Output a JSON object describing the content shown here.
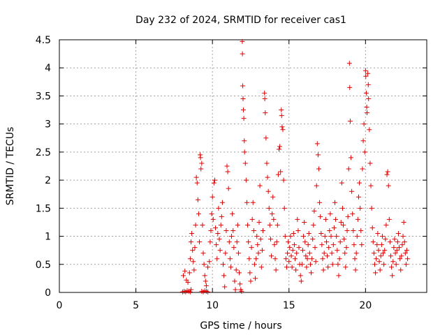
{
  "chart_data": {
    "type": "scatter",
    "title": "Day 232 of 2024, SRMTID for receiver cas1",
    "xlabel": "GPS time / hours",
    "ylabel": "SRMTID / TECUs",
    "xlim": [
      0,
      24
    ],
    "ylim": [
      0,
      4.5
    ],
    "xticks": [
      0,
      5,
      10,
      15,
      20
    ],
    "xtick_labels": [
      "0",
      "5",
      "10",
      "15",
      "20"
    ],
    "yticks": [
      0,
      0.5,
      1,
      1.5,
      2,
      2.5,
      3,
      3.5,
      4,
      4.5
    ],
    "ytick_labels": [
      "0",
      "0.5",
      "1",
      "1.5",
      "2",
      "2.5",
      "3",
      "3.5",
      "4",
      "4.5"
    ],
    "grid": true,
    "marker": "+",
    "series": [
      {
        "name": "cas1",
        "color": "#e00000",
        "points": [
          [
            8.05,
            0.01
          ],
          [
            8.15,
            0.02
          ],
          [
            8.25,
            0.01
          ],
          [
            8.35,
            0.03
          ],
          [
            8.45,
            0.02
          ],
          [
            8.55,
            0.01
          ],
          [
            8.6,
            0.05
          ],
          [
            8.1,
            0.3
          ],
          [
            8.2,
            0.38
          ],
          [
            8.3,
            0.22
          ],
          [
            8.4,
            0.18
          ],
          [
            8.5,
            0.35
          ],
          [
            8.55,
            0.6
          ],
          [
            8.6,
            0.9
          ],
          [
            8.65,
            1.05
          ],
          [
            8.7,
            0.75
          ],
          [
            8.75,
            0.55
          ],
          [
            8.8,
            0.4
          ],
          [
            8.85,
            0.8
          ],
          [
            8.9,
            1.2
          ],
          [
            8.95,
            2.05
          ],
          [
            9.0,
            1.95
          ],
          [
            9.05,
            1.65
          ],
          [
            9.1,
            1.4
          ],
          [
            9.15,
            0.9
          ],
          [
            9.2,
            2.45
          ],
          [
            9.22,
            2.4
          ],
          [
            9.25,
            2.2
          ],
          [
            9.3,
            2.3
          ],
          [
            9.35,
            1.2
          ],
          [
            9.4,
            0.7
          ],
          [
            9.3,
            0.02
          ],
          [
            9.4,
            0.01
          ],
          [
            9.5,
            0.03
          ],
          [
            9.6,
            0.02
          ],
          [
            9.7,
            0.01
          ],
          [
            9.45,
            0.5
          ],
          [
            9.5,
            0.3
          ],
          [
            9.55,
            0.2
          ],
          [
            9.6,
            0.12
          ],
          [
            9.7,
            0.45
          ],
          [
            9.8,
            0.55
          ],
          [
            9.85,
            0.9
          ],
          [
            9.9,
            1.1
          ],
          [
            9.95,
            1.4
          ],
          [
            10.0,
            1.7
          ],
          [
            10.05,
            1.3
          ],
          [
            10.1,
            1.95
          ],
          [
            10.15,
            2.0
          ],
          [
            10.2,
            1.15
          ],
          [
            10.25,
            0.85
          ],
          [
            10.3,
            0.6
          ],
          [
            10.35,
            1.05
          ],
          [
            10.4,
            1.5
          ],
          [
            10.45,
            0.95
          ],
          [
            10.5,
            0.75
          ],
          [
            10.55,
            1.2
          ],
          [
            10.6,
            1.35
          ],
          [
            10.65,
            1.6
          ],
          [
            10.7,
            0.5
          ],
          [
            10.75,
            0.3
          ],
          [
            10.8,
            0.1
          ],
          [
            10.85,
            0.7
          ],
          [
            10.9,
            1.1
          ],
          [
            10.95,
            2.25
          ],
          [
            11.0,
            2.15
          ],
          [
            11.05,
            1.85
          ],
          [
            11.1,
            0.9
          ],
          [
            11.15,
            0.6
          ],
          [
            11.2,
            0.45
          ],
          [
            11.25,
            1.0
          ],
          [
            11.3,
            1.4
          ],
          [
            11.35,
            1.1
          ],
          [
            11.4,
            0.8
          ],
          [
            11.45,
            0.2
          ],
          [
            11.5,
            0.05
          ],
          [
            11.55,
            0.4
          ],
          [
            11.6,
            0.9
          ],
          [
            11.65,
            1.2
          ],
          [
            11.7,
            0.7
          ],
          [
            11.75,
            0.35
          ],
          [
            11.8,
            0.15
          ],
          [
            11.85,
            0.05
          ],
          [
            11.9,
            0.02
          ],
          [
            11.95,
            4.47
          ],
          [
            11.96,
            4.25
          ],
          [
            11.98,
            3.68
          ],
          [
            12.0,
            3.45
          ],
          [
            12.02,
            3.25
          ],
          [
            12.05,
            3.1
          ],
          [
            12.08,
            2.7
          ],
          [
            12.1,
            2.5
          ],
          [
            12.15,
            2.3
          ],
          [
            12.2,
            2.0
          ],
          [
            12.25,
            1.6
          ],
          [
            12.3,
            1.2
          ],
          [
            12.35,
            0.9
          ],
          [
            12.4,
            0.6
          ],
          [
            12.45,
            0.35
          ],
          [
            12.5,
            0.2
          ],
          [
            12.55,
            0.8
          ],
          [
            12.6,
            1.3
          ],
          [
            12.65,
            1.6
          ],
          [
            12.7,
            1.1
          ],
          [
            12.75,
            0.5
          ],
          [
            12.8,
            0.25
          ],
          [
            12.85,
            0.6
          ],
          [
            12.9,
            1.0
          ],
          [
            12.95,
            0.85
          ],
          [
            13.0,
            0.7
          ],
          [
            13.05,
            1.25
          ],
          [
            13.1,
            1.9
          ],
          [
            13.15,
            0.95
          ],
          [
            13.2,
            0.45
          ],
          [
            13.25,
            0.75
          ],
          [
            13.3,
            1.1
          ],
          [
            13.4,
            3.55
          ],
          [
            13.42,
            3.45
          ],
          [
            13.45,
            3.2
          ],
          [
            13.5,
            2.75
          ],
          [
            13.55,
            2.3
          ],
          [
            13.6,
            2.05
          ],
          [
            13.65,
            1.8
          ],
          [
            13.7,
            1.5
          ],
          [
            13.75,
            1.2
          ],
          [
            13.8,
            0.95
          ],
          [
            13.85,
            0.65
          ],
          [
            13.9,
            1.4
          ],
          [
            13.95,
            1.7
          ],
          [
            14.0,
            1.3
          ],
          [
            14.05,
            0.85
          ],
          [
            14.1,
            0.6
          ],
          [
            14.15,
            0.4
          ],
          [
            14.2,
            0.9
          ],
          [
            14.25,
            1.2
          ],
          [
            14.3,
            2.1
          ],
          [
            14.35,
            2.55
          ],
          [
            14.4,
            2.6
          ],
          [
            14.45,
            2.15
          ],
          [
            14.5,
            3.25
          ],
          [
            14.52,
            3.15
          ],
          [
            14.55,
            2.95
          ],
          [
            14.6,
            2.9
          ],
          [
            14.65,
            2.0
          ],
          [
            14.7,
            1.5
          ],
          [
            14.75,
            1.0
          ],
          [
            14.8,
            0.6
          ],
          [
            14.85,
            0.45
          ],
          [
            14.9,
            0.7
          ],
          [
            14.95,
            0.9
          ],
          [
            15.0,
            0.55
          ],
          [
            15.05,
            0.8
          ],
          [
            15.1,
            1.0
          ],
          [
            15.15,
            0.65
          ],
          [
            15.2,
            0.45
          ],
          [
            15.25,
            0.75
          ],
          [
            15.3,
            1.05
          ],
          [
            15.35,
            0.85
          ],
          [
            15.4,
            0.6
          ],
          [
            15.45,
            0.4
          ],
          [
            15.5,
            0.7
          ],
          [
            15.55,
            1.3
          ],
          [
            15.6,
            1.1
          ],
          [
            15.65,
            0.8
          ],
          [
            15.7,
            0.5
          ],
          [
            15.75,
            0.3
          ],
          [
            15.8,
            0.2
          ],
          [
            15.85,
            0.5
          ],
          [
            15.9,
            0.75
          ],
          [
            15.95,
            1.0
          ],
          [
            16.0,
            1.25
          ],
          [
            16.05,
            0.9
          ],
          [
            16.1,
            0.65
          ],
          [
            16.15,
            0.45
          ],
          [
            16.2,
            0.6
          ],
          [
            16.25,
            0.85
          ],
          [
            16.3,
            1.05
          ],
          [
            16.35,
            0.7
          ],
          [
            16.4,
            0.5
          ],
          [
            16.45,
            0.35
          ],
          [
            16.5,
            0.6
          ],
          [
            16.55,
            0.95
          ],
          [
            16.6,
            1.2
          ],
          [
            16.65,
            1.45
          ],
          [
            16.7,
            0.8
          ],
          [
            16.75,
            0.55
          ],
          [
            16.8,
            1.9
          ],
          [
            16.85,
            2.65
          ],
          [
            16.9,
            2.45
          ],
          [
            16.95,
            2.2
          ],
          [
            17.0,
            1.6
          ],
          [
            17.05,
            1.35
          ],
          [
            17.1,
            1.05
          ],
          [
            17.15,
            0.85
          ],
          [
            17.2,
            0.6
          ],
          [
            17.25,
            0.4
          ],
          [
            17.3,
            0.7
          ],
          [
            17.35,
            1.0
          ],
          [
            17.4,
            1.3
          ],
          [
            17.45,
            0.9
          ],
          [
            17.5,
            0.65
          ],
          [
            17.55,
            0.45
          ],
          [
            17.6,
            0.8
          ],
          [
            17.65,
            1.1
          ],
          [
            17.7,
            1.4
          ],
          [
            17.75,
            1.0
          ],
          [
            17.8,
            0.7
          ],
          [
            17.85,
            0.5
          ],
          [
            17.9,
            0.85
          ],
          [
            17.95,
            1.15
          ],
          [
            18.0,
            1.6
          ],
          [
            18.05,
            1.3
          ],
          [
            18.1,
            1.0
          ],
          [
            18.15,
            0.75
          ],
          [
            18.2,
            0.5
          ],
          [
            18.25,
            0.3
          ],
          [
            18.3,
            0.6
          ],
          [
            18.35,
            0.9
          ],
          [
            18.4,
            1.25
          ],
          [
            18.45,
            1.95
          ],
          [
            18.5,
            1.5
          ],
          [
            18.55,
            1.2
          ],
          [
            18.6,
            0.95
          ],
          [
            18.65,
            0.7
          ],
          [
            18.7,
            0.45
          ],
          [
            18.75,
            0.8
          ],
          [
            18.8,
            1.1
          ],
          [
            18.85,
            1.35
          ],
          [
            18.9,
            2.2
          ],
          [
            18.95,
            4.08
          ],
          [
            18.97,
            3.65
          ],
          [
            19.0,
            3.05
          ],
          [
            19.05,
            2.4
          ],
          [
            19.1,
            1.8
          ],
          [
            19.15,
            1.4
          ],
          [
            19.2,
            1.1
          ],
          [
            19.25,
            0.85
          ],
          [
            19.3,
            0.6
          ],
          [
            19.35,
            0.4
          ],
          [
            19.4,
            0.7
          ],
          [
            19.45,
            1.0
          ],
          [
            19.5,
            1.3
          ],
          [
            19.55,
            1.7
          ],
          [
            19.6,
            1.95
          ],
          [
            19.65,
            1.5
          ],
          [
            19.7,
            1.1
          ],
          [
            19.75,
            0.85
          ],
          [
            19.8,
            2.2
          ],
          [
            19.85,
            2.7
          ],
          [
            19.9,
            3.0
          ],
          [
            19.95,
            2.5
          ],
          [
            20.0,
            3.95
          ],
          [
            20.02,
            3.85
          ],
          [
            20.05,
            3.55
          ],
          [
            20.08,
            3.3
          ],
          [
            20.1,
            3.2
          ],
          [
            20.15,
            3.9
          ],
          [
            20.18,
            3.7
          ],
          [
            20.2,
            3.45
          ],
          [
            20.25,
            2.9
          ],
          [
            20.3,
            2.3
          ],
          [
            20.35,
            1.9
          ],
          [
            20.4,
            1.5
          ],
          [
            20.45,
            1.15
          ],
          [
            20.5,
            0.9
          ],
          [
            20.55,
            0.7
          ],
          [
            20.6,
            0.5
          ],
          [
            20.65,
            0.35
          ],
          [
            20.7,
            0.6
          ],
          [
            20.75,
            0.85
          ],
          [
            20.8,
            1.05
          ],
          [
            20.85,
            0.75
          ],
          [
            20.9,
            0.55
          ],
          [
            20.95,
            0.4
          ],
          [
            21.0,
            0.65
          ],
          [
            21.05,
            0.85
          ],
          [
            21.1,
            1.0
          ],
          [
            21.15,
            0.7
          ],
          [
            21.2,
            0.5
          ],
          [
            21.25,
            0.75
          ],
          [
            21.3,
            0.95
          ],
          [
            21.35,
            1.2
          ],
          [
            21.4,
            2.1
          ],
          [
            21.45,
            2.15
          ],
          [
            21.5,
            1.9
          ],
          [
            21.55,
            1.3
          ],
          [
            21.6,
            0.9
          ],
          [
            21.65,
            0.65
          ],
          [
            21.7,
            0.45
          ],
          [
            21.75,
            0.3
          ],
          [
            21.8,
            0.55
          ],
          [
            21.85,
            0.8
          ],
          [
            21.9,
            0.95
          ],
          [
            21.95,
            0.7
          ],
          [
            22.0,
            0.5
          ],
          [
            22.05,
            0.75
          ],
          [
            22.1,
            0.9
          ],
          [
            22.15,
            1.05
          ],
          [
            22.2,
            0.8
          ],
          [
            22.25,
            0.6
          ],
          [
            22.3,
            0.4
          ],
          [
            22.35,
            0.65
          ],
          [
            22.4,
            0.85
          ],
          [
            22.45,
            1.0
          ],
          [
            22.5,
            1.25
          ],
          [
            22.55,
            0.9
          ],
          [
            22.6,
            0.7
          ],
          [
            22.65,
            0.5
          ],
          [
            22.7,
            0.75
          ],
          [
            22.75,
            0.6
          ]
        ]
      }
    ]
  }
}
